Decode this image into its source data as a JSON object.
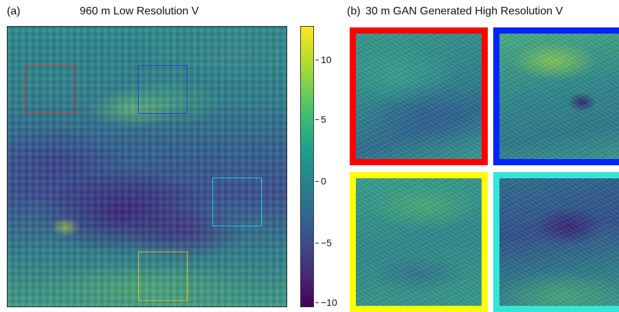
{
  "panel_a": {
    "label": "(a)",
    "title": "960 m Low Resolution V",
    "roi_colors": {
      "red": "#e52222",
      "blue": "#1b2fd8",
      "cyan": "#2fe0f0",
      "yellow": "#e8c21a"
    }
  },
  "colorbar": {
    "ticks": [
      "10",
      "5",
      "0",
      "−5",
      "−10"
    ],
    "range": [
      -11,
      13
    ],
    "tick_values": [
      10,
      5,
      0,
      -5,
      -10
    ],
    "colormap": "viridis"
  },
  "panel_b": {
    "label": "(b)",
    "title": "30 m GAN Generated High Resolution V",
    "frame_colors": {
      "red": "#ff0000",
      "blue": "#0022ff",
      "yellow": "#ffff00",
      "cyan": "#33e6d8"
    }
  }
}
